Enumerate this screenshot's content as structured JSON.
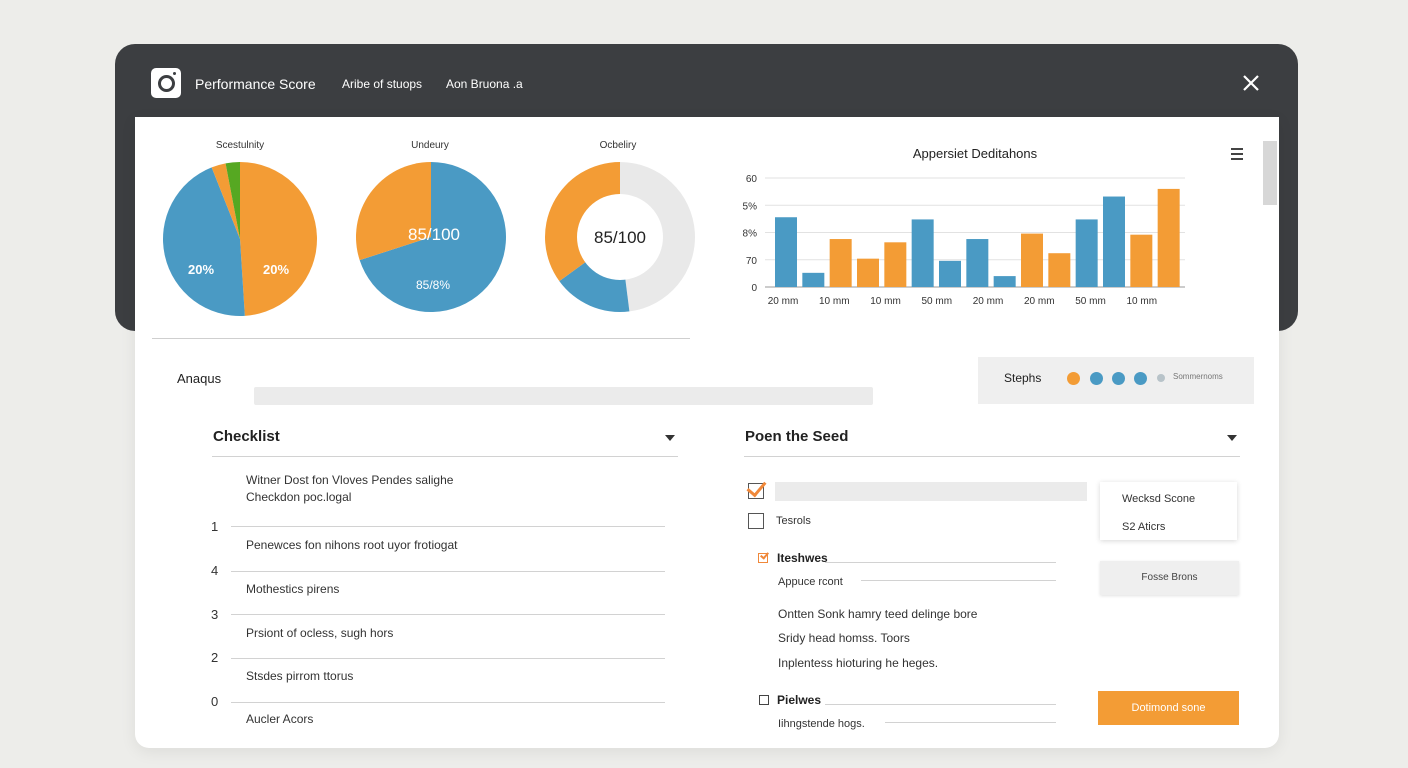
{
  "window": {
    "title": "Performance Score",
    "menu": [
      "Aribe of stuops",
      "Aon Bruona .a"
    ]
  },
  "pies": [
    {
      "label": "Scestulnity",
      "slices": [
        {
          "value": 49,
          "color": "#f39c35"
        },
        {
          "value": 45,
          "color": "#4a9ac4"
        },
        {
          "value": 3,
          "color": "#f39c35"
        },
        {
          "value": 3,
          "color": "#56a822"
        }
      ],
      "text_left": "20%",
      "text_right": "20%"
    },
    {
      "label": "Undeury",
      "slices": [
        {
          "value": 70,
          "color": "#4a9ac4"
        },
        {
          "value": 30,
          "color": "#f39c35"
        }
      ],
      "text_center": "85/100",
      "text_bottom": "85/8%"
    },
    {
      "label": "Ocbeliry",
      "slices": [
        {
          "value": 48,
          "color": "#e9e9e9"
        },
        {
          "value": 17,
          "color": "#4a9ac4"
        },
        {
          "value": 35,
          "color": "#f39c35"
        }
      ],
      "text_center": "85/100"
    }
  ],
  "chart_data": {
    "type": "bar",
    "title": "Appersiet Deditahons",
    "y_ticks": [
      "0",
      "70",
      "8%",
      "5%",
      "60"
    ],
    "x_ticks": [
      "20 mm",
      "10 mm",
      "10 mm",
      "50 mm",
      "20 mm",
      "20 mm",
      "50 mm",
      "10 mm"
    ],
    "ylim": [
      0,
      100
    ],
    "values": [
      64,
      13,
      44,
      26,
      41,
      62,
      24,
      44,
      10,
      49,
      31,
      62,
      83,
      48,
      90
    ],
    "colors": [
      "#4a9ac4",
      "#4a9ac4",
      "#f39c35",
      "#f39c35",
      "#f39c35",
      "#4a9ac4",
      "#4a9ac4",
      "#4a9ac4",
      "#4a9ac4",
      "#f39c35",
      "#f39c35",
      "#4a9ac4",
      "#4a9ac4",
      "#f39c35",
      "#f39c35"
    ]
  },
  "analysis": {
    "label": "Anaqus"
  },
  "steps": {
    "label": "Stephs",
    "dot_colors": [
      "#f39c35",
      "#4a9ac4",
      "#4a9ac4",
      "#4a9ac4"
    ],
    "tiny": "Sommernoms"
  },
  "checklist": {
    "title": "Checklist",
    "items": [
      "Witner Dost fon Vloves Pendes salighe\nCheckdon poc.logal",
      "Penewces fon nihons root uyor frotiogat",
      "Mothestics pirens",
      "Prsiont of ocless, sugh hors",
      "Stsdes pirrom ttorus",
      "Aucler Acors"
    ],
    "numbers": [
      "1",
      "4",
      "3",
      "2",
      "0"
    ]
  },
  "seed": {
    "title": "Poen the Seed",
    "checkbox_2_label": "Tesrols",
    "group1_title": "Iteshwes",
    "group1_sub": "Appuce rcont",
    "lines": [
      "Ontten Sonk hamry teed delinge bore",
      "Sridy head homss. Toors",
      "Inplentess hioturing he heges."
    ],
    "group2_title": "Pielwes",
    "group2_sub": "Iihngstende hogs."
  },
  "side": {
    "card_line1": "Wecksd Scone",
    "card_line2": "S2 Aticrs",
    "gray_button": "Fosse Brons",
    "orange_button": "Dotimond sone"
  }
}
